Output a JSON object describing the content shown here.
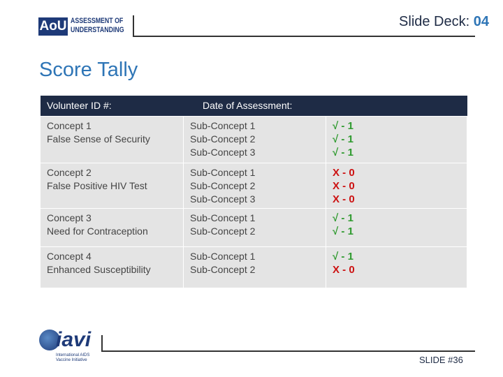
{
  "header": {
    "logo": {
      "abbr": "AoU",
      "line1": "ASSESSMENT OF",
      "line2": "UNDERSTANDING"
    },
    "deck_label": "Slide Deck:",
    "deck_number": "04"
  },
  "title": "Score Tally",
  "table": {
    "header": [
      "Volunteer ID #:",
      "Date of Assessment:"
    ],
    "rows": [
      {
        "concept": [
          "Concept 1",
          "False Sense of Security"
        ],
        "sub_concepts": [
          "Sub-Concept 1",
          "Sub-Concept 2",
          "Sub-Concept 3"
        ],
        "scores": [
          "√ - 1",
          "√ - 1",
          "√ - 1"
        ]
      },
      {
        "concept": [
          "Concept 2",
          "False Positive HIV Test"
        ],
        "sub_concepts": [
          "Sub-Concept 1",
          "Sub-Concept 2",
          "Sub-Concept 3"
        ],
        "scores": [
          "X - 0",
          "X - 0",
          "X - 0"
        ]
      },
      {
        "concept": [
          "Concept 3",
          "Need for Contraception"
        ],
        "sub_concepts": [
          "Sub-Concept 1",
          "Sub-Concept 2"
        ],
        "scores": [
          "√ - 1",
          "√ - 1"
        ]
      },
      {
        "concept": [
          "Concept 4",
          "Enhanced Susceptibility"
        ],
        "sub_concepts": [
          "Sub-Concept 1",
          "Sub-Concept 2"
        ],
        "scores": [
          "√ - 1",
          "X - 0"
        ]
      }
    ]
  },
  "footer": {
    "logo": {
      "name": "iavi",
      "line1": "International AIDS",
      "line2": "Vaccine Initiative"
    },
    "slide": "SLIDE #36"
  }
}
